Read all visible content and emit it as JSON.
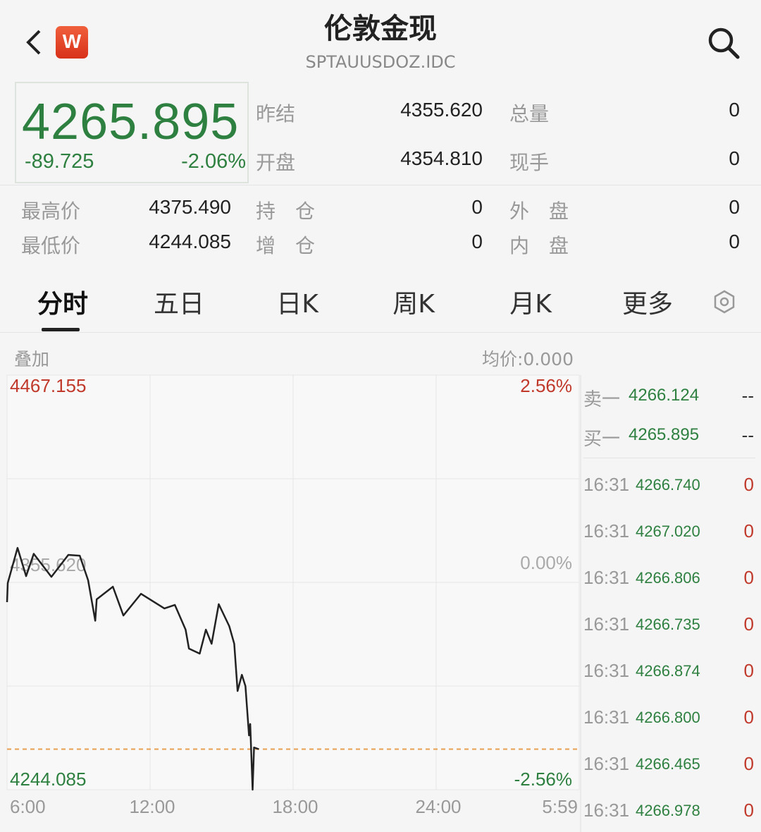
{
  "header": {
    "title": "伦敦金现",
    "code": "SPTAUUSDOZ.IDC",
    "logo": "W",
    "back_icon": "chevron-left-icon",
    "search_icon": "search-icon"
  },
  "quote": {
    "price": "4265.895",
    "change": "-89.725",
    "change_pct": "-2.06%",
    "fields": [
      {
        "label": "昨结",
        "value": "4355.620"
      },
      {
        "label": "总量",
        "value": "0"
      },
      {
        "label": "开盘",
        "value": "4354.810"
      },
      {
        "label": "现手",
        "value": "0"
      },
      {
        "label": "最高价",
        "value": "4375.490"
      },
      {
        "label": "持　仓",
        "value": "0"
      },
      {
        "label": "外　盘",
        "value": "0"
      },
      {
        "label": "最低价",
        "value": "4244.085"
      },
      {
        "label": "增　仓",
        "value": "0"
      },
      {
        "label": "内　盘",
        "value": "0"
      }
    ]
  },
  "tabs": [
    {
      "label": "分时",
      "active": true
    },
    {
      "label": "五日"
    },
    {
      "label": "日K"
    },
    {
      "label": "周K"
    },
    {
      "label": "月K"
    },
    {
      "label": "更多"
    }
  ],
  "settings_icon": "hexagon-settings-icon",
  "chart_data": {
    "type": "line",
    "overlay_label": "叠加",
    "avg_price": "均价:0.000",
    "ylim": [
      4244.085,
      4467.155
    ],
    "y_labels": {
      "top": "4467.155",
      "mid": "4355.620",
      "bottom": "4244.085"
    },
    "pct_labels": {
      "top": "2.56%",
      "mid": "0.00%",
      "bottom": "-2.56%"
    },
    "x_ticks": [
      "6:00",
      "12:00",
      "18:00",
      "24:00",
      "5:59"
    ],
    "reference_line": 4355.62,
    "current_line": 4265.895,
    "x_hours_since_open": [
      0,
      0.03,
      0.44,
      0.8,
      1.12,
      1.86,
      2.57,
      3.05,
      3.4,
      3.7,
      3.76,
      4.44,
      4.88,
      5.62,
      6.6,
      7.04,
      7.49,
      7.63,
      8.08,
      8.34,
      8.58,
      8.88,
      9.32,
      9.53,
      9.67,
      9.85,
      10.0,
      10.15,
      10.2,
      10.3,
      10.36,
      10.56
    ],
    "values": [
      4345,
      4355.3,
      4374.2,
      4359,
      4371,
      4358.6,
      4370.4,
      4370,
      4356.8,
      4335,
      4346.5,
      4353.3,
      4337.8,
      4349.5,
      4341.6,
      4343.5,
      4330.2,
      4320,
      4317.3,
      4330.2,
      4322.6,
      4343.9,
      4332.1,
      4322.6,
      4297.2,
      4305.9,
      4299.8,
      4273.3,
      4279.4,
      4244.1,
      4266.8,
      4265.9
    ],
    "grid": true,
    "colors": {
      "line": "#222222",
      "up": "#c0392b",
      "down": "#2e8040",
      "current": "#e8a050"
    }
  },
  "orderbook": {
    "asks": [
      {
        "label": "卖一",
        "price": "4266.124",
        "vol": "--"
      }
    ],
    "bids": [
      {
        "label": "买一",
        "price": "4265.895",
        "vol": "--"
      }
    ]
  },
  "ticks": [
    {
      "time": "16:31",
      "price": "4266.740",
      "vol": "0"
    },
    {
      "time": "16:31",
      "price": "4267.020",
      "vol": "0"
    },
    {
      "time": "16:31",
      "price": "4266.806",
      "vol": "0"
    },
    {
      "time": "16:31",
      "price": "4266.735",
      "vol": "0"
    },
    {
      "time": "16:31",
      "price": "4266.874",
      "vol": "0"
    },
    {
      "time": "16:31",
      "price": "4266.800",
      "vol": "0"
    },
    {
      "time": "16:31",
      "price": "4266.465",
      "vol": "0"
    },
    {
      "time": "16:31",
      "price": "4266.978",
      "vol": "0"
    }
  ]
}
